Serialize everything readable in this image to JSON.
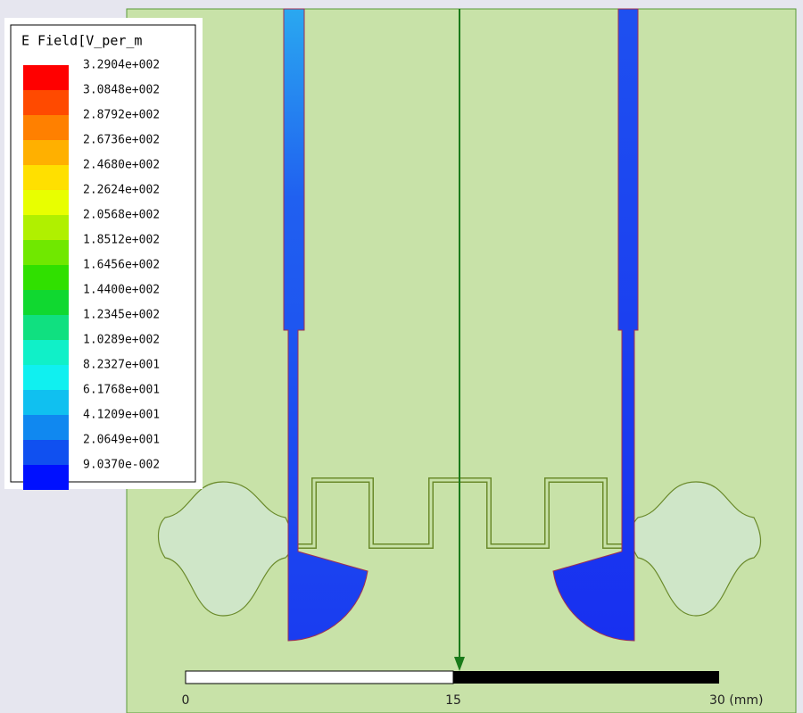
{
  "legend": {
    "title": "E Field[V_per_m",
    "labels": [
      "3.2904e+002",
      "3.0848e+002",
      "2.8792e+002",
      "2.6736e+002",
      "2.4680e+002",
      "2.2624e+002",
      "2.0568e+002",
      "1.8512e+002",
      "1.6456e+002",
      "1.4400e+002",
      "1.2345e+002",
      "1.0289e+002",
      "8.2327e+001",
      "6.1768e+001",
      "4.1209e+001",
      "2.0649e+001",
      "9.0370e-002"
    ]
  },
  "scale": {
    "labels": [
      "0",
      "15",
      "30 (mm)"
    ]
  }
}
